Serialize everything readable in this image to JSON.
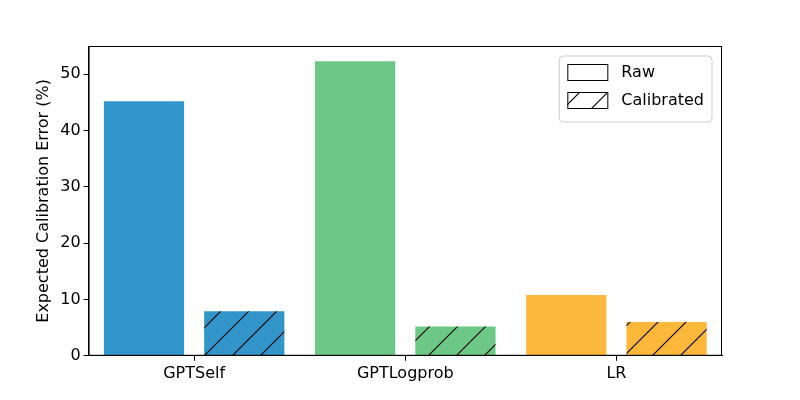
{
  "chart_data": {
    "type": "bar",
    "ylabel": "Expected Calibration Error (%)",
    "categories": [
      "GPTSelf",
      "GPTLogprob",
      "LR"
    ],
    "series": [
      {
        "name": "Raw",
        "colors": [
          "#3396ca",
          "#6dc886",
          "#fbb83b"
        ],
        "values": [
          45.2,
          52.3,
          10.8
        ]
      },
      {
        "name": "Calibrated",
        "colors": [
          "#3396ca",
          "#6dc886",
          "#fbb83b"
        ],
        "values": [
          7.9,
          5.2,
          6.0
        ]
      }
    ],
    "ylim": [
      0,
      55
    ],
    "yticks": [
      0,
      10,
      20,
      30,
      40,
      50
    ],
    "grid": false,
    "legend": "upper right"
  }
}
